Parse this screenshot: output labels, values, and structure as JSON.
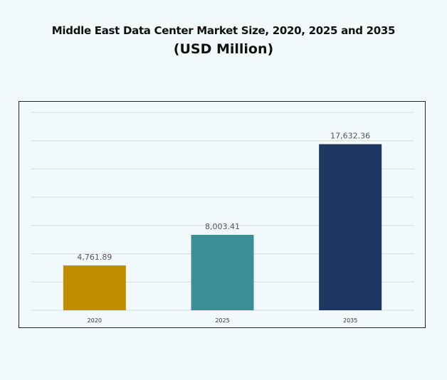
{
  "chart_data": {
    "type": "bar",
    "title": "Middle East Data Center Market Size, 2020, 2025 and 2035",
    "subtitle": "(USD Million)",
    "categories": [
      "2020",
      "2025",
      "2035"
    ],
    "values": [
      4761.89,
      8003.41,
      17632.36
    ],
    "value_labels": [
      "4,761.89",
      "8,003.41",
      "17,632.36"
    ],
    "colors": [
      "#c08e00",
      "#3b8e96",
      "#1f3662"
    ],
    "xlabel": "",
    "ylabel": "",
    "ylim": [
      0,
      21000
    ],
    "grid": true,
    "y_axis_labels_shown": false,
    "legend": "none"
  }
}
